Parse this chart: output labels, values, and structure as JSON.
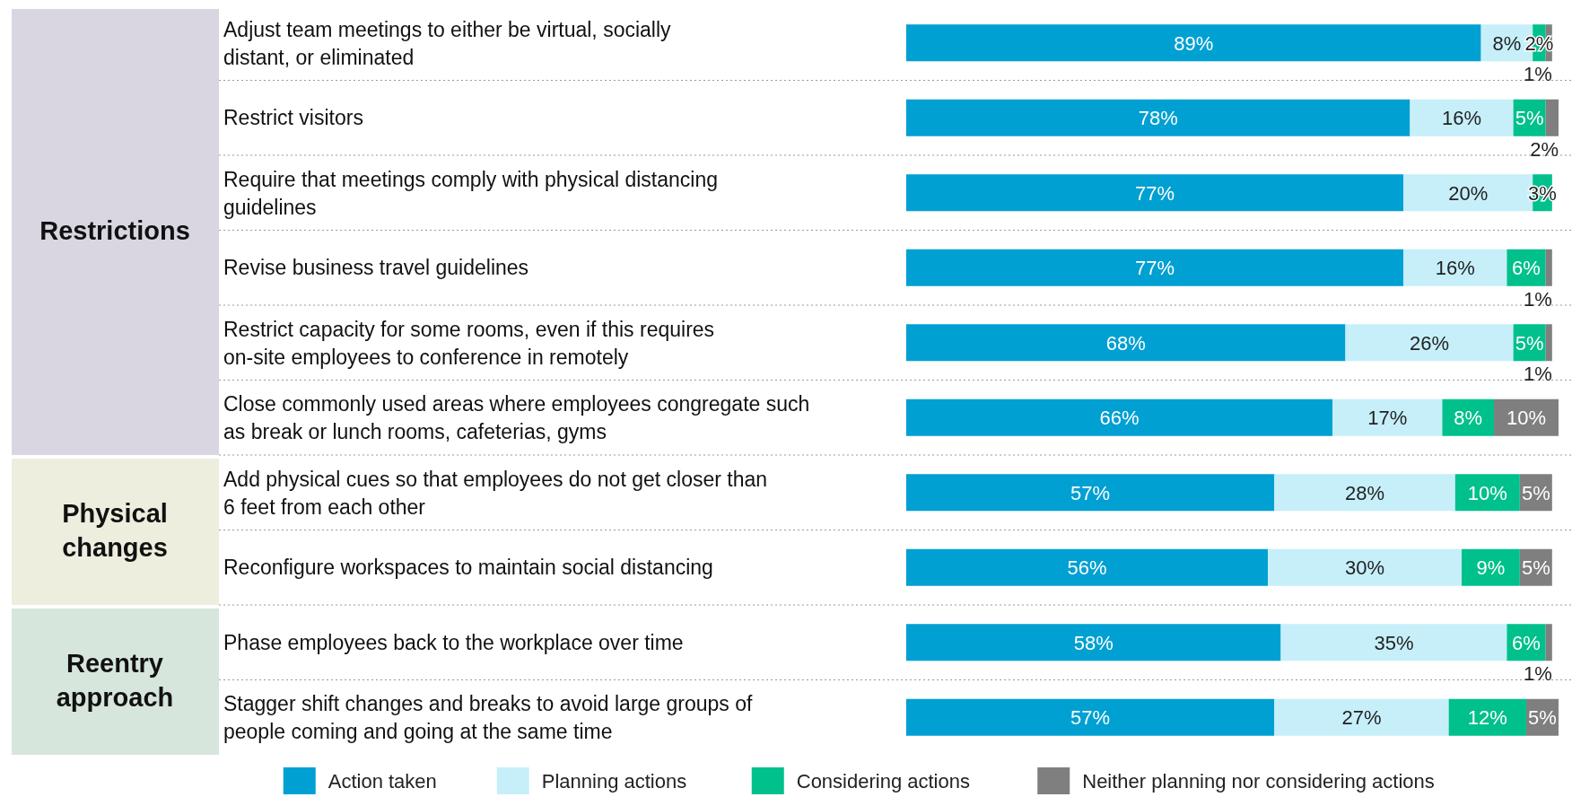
{
  "chart_data": {
    "type": "bar",
    "orientation": "horizontal",
    "stacked": true,
    "legend": "bottom",
    "categories": [
      "Adjust team meetings to either be virtual, socially distant, or eliminated",
      "Restrict visitors",
      "Require that meetings comply with physical distancing guidelines",
      "Revise business travel guidelines",
      "Restrict capacity for some rooms, even if this requires on-site employees to conference in remotely",
      "Close commonly used areas where employees congregate such as break or lunch rooms, cafeterias, gyms",
      "Add physical cues so that employees do not get closer than 6 feet from each other",
      "Reconfigure workspaces to maintain social distancing",
      "Phase employees back to the workplace over time",
      "Stagger shift changes and breaks to avoid large groups of people coming and going at the same time"
    ],
    "series": [
      {
        "name": "Action taken",
        "color": "#00a0d2",
        "values": [
          89,
          78,
          77,
          77,
          68,
          66,
          57,
          56,
          58,
          57
        ],
        "value_labels": [
          "89%",
          "78%",
          "77%",
          "77%",
          "68%",
          "66%",
          "57%",
          "56%",
          "58%",
          "57%"
        ]
      },
      {
        "name": "Planning actions",
        "color": "#c6effa",
        "values": [
          8,
          16,
          20,
          16,
          26,
          17,
          28,
          30,
          35,
          27
        ],
        "value_labels": [
          "8%",
          "16%",
          "20%",
          "16%",
          "26%",
          "17%",
          "28%",
          "30%",
          "35%",
          "27%"
        ]
      },
      {
        "name": "Considering actions",
        "color": "#00c08b",
        "values": [
          2,
          5,
          3,
          6,
          5,
          8,
          10,
          9,
          6,
          12
        ],
        "value_labels": [
          "2%",
          "5%",
          "3%",
          "6%",
          "5%",
          "8%",
          "10%",
          "9%",
          "6%",
          "12%"
        ]
      },
      {
        "name": "Neither planning nor considering actions",
        "color": "#7f7f7f",
        "values": [
          1,
          2,
          null,
          1,
          1,
          10,
          5,
          5,
          1,
          5
        ],
        "value_labels": [
          "1%",
          "2%",
          null,
          "1%",
          "1%",
          "10%",
          "5%",
          "5%",
          "1%",
          "5%"
        ]
      }
    ],
    "annotations": [
      "Restrictions",
      "Physical changes",
      "Reentry approach"
    ]
  }
}
